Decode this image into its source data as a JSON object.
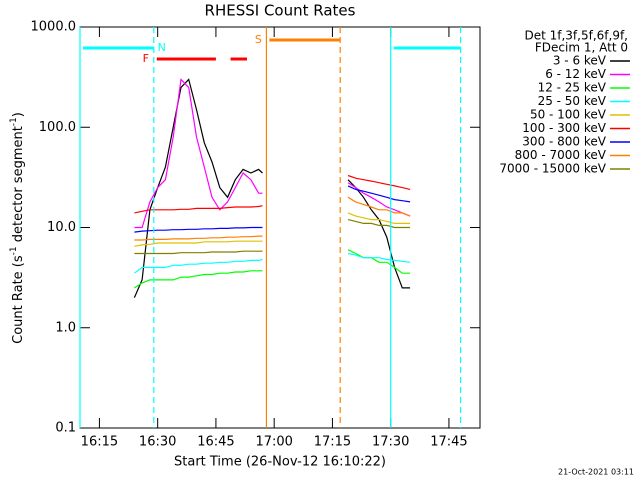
{
  "chart_data": {
    "type": "line",
    "title": "RHESSI Count Rates",
    "xlabel": "Start Time (26-Nov-12 16:10:22)",
    "ylabel": [
      "Count Rate (s",
      "-1",
      " detector segment",
      "-1",
      ")"
    ],
    "legend_header": [
      "Det 1f,3f,5f,6f,9f,",
      "FDecim 1, Att 0"
    ],
    "timestamp": "21-Oct-2021 03:11",
    "log_y": true,
    "legend": "right",
    "xlim": [
      "16:10",
      "17:53"
    ],
    "xticks": [
      "16:15",
      "16:30",
      "16:45",
      "17:00",
      "17:15",
      "17:30",
      "17:45"
    ],
    "ylim": [
      0.1,
      1000
    ],
    "yticks": [
      0.1,
      {
        "value": 1,
        "label": "1.0"
      },
      {
        "value": 10,
        "label": "10.0"
      },
      {
        "value": 100,
        "label": "100.0"
      },
      {
        "value": 1000,
        "label": "1000.0"
      }
    ],
    "x": [
      "16:24",
      "16:26",
      "16:28",
      "16:30",
      "16:32",
      "16:34",
      "16:36",
      "16:38",
      "16:40",
      "16:42",
      "16:44",
      "16:46",
      "16:48",
      "16:50",
      "16:52",
      "16:54",
      "16:56",
      "16:57",
      "17:08",
      "17:19",
      "17:21",
      "17:23",
      "17:25",
      "17:27",
      "17:29",
      "17:31",
      "17:33",
      "17:35"
    ],
    "series": [
      {
        "name": "3 - 6 keV",
        "color": "#000000",
        "values": [
          2,
          3,
          15,
          25,
          40,
          100,
          250,
          300,
          150,
          70,
          45,
          25,
          20,
          30,
          38,
          35,
          38,
          35,
          null,
          30,
          25,
          20,
          15,
          12,
          8,
          4,
          2.5,
          2.5
        ]
      },
      {
        "name": "6 - 12 keV",
        "color": "#ff00ff",
        "values": [
          10,
          10,
          18,
          25,
          30,
          80,
          300,
          250,
          80,
          40,
          20,
          15,
          18,
          25,
          35,
          30,
          22,
          22,
          null,
          28,
          25,
          22,
          20,
          18,
          16,
          15,
          14,
          13
        ]
      },
      {
        "name": "12 - 25 keV",
        "color": "#00ff00",
        "values": [
          2.5,
          2.8,
          3,
          3,
          3,
          3,
          3.2,
          3.2,
          3.3,
          3.4,
          3.4,
          3.5,
          3.5,
          3.6,
          3.6,
          3.7,
          3.7,
          3.7,
          null,
          6,
          5.5,
          5,
          5,
          4.5,
          4.5,
          4,
          3.5,
          3.5
        ]
      },
      {
        "name": "25 - 50 keV",
        "color": "#00ffff",
        "values": [
          3.5,
          4,
          4,
          4,
          4,
          4.2,
          4.2,
          4.3,
          4.3,
          4.4,
          4.4,
          4.5,
          4.5,
          4.6,
          4.6,
          4.7,
          4.7,
          4.8,
          null,
          5.5,
          5.3,
          5,
          5,
          5,
          4.8,
          4.7,
          4.6,
          4.5
        ]
      },
      {
        "name": "50 - 100 keV",
        "color": "#e0c000",
        "values": [
          6.5,
          6.7,
          6.8,
          7,
          7,
          7,
          7,
          7,
          7,
          7.2,
          7.2,
          7.2,
          7.2,
          7.3,
          7.3,
          7.3,
          7.3,
          7.3,
          null,
          14,
          13,
          12.5,
          12,
          12,
          11.5,
          11,
          11,
          11
        ]
      },
      {
        "name": "100 - 300 keV",
        "color": "#ff0000",
        "values": [
          14,
          14.5,
          15,
          15,
          15,
          15,
          15.2,
          15.2,
          15.5,
          15.5,
          15.5,
          15.5,
          15.8,
          16,
          16,
          16,
          16.2,
          16.5,
          null,
          33,
          31,
          30,
          29,
          28,
          27,
          26,
          25,
          24
        ]
      },
      {
        "name": "300 - 800 keV",
        "color": "#0000ff",
        "values": [
          9,
          9.2,
          9.3,
          9.4,
          9.4,
          9.5,
          9.5,
          9.6,
          9.6,
          9.7,
          9.7,
          9.8,
          9.8,
          9.9,
          9.9,
          10,
          10,
          10,
          null,
          26,
          24,
          23,
          22,
          21,
          20,
          19,
          18.5,
          18
        ]
      },
      {
        "name": "800 - 7000 keV",
        "color": "#ff8000",
        "values": [
          7.5,
          7.5,
          7.6,
          7.6,
          7.6,
          7.7,
          7.7,
          7.7,
          7.8,
          7.8,
          7.9,
          7.9,
          8,
          8,
          8.1,
          8.1,
          8.2,
          8.2,
          null,
          20,
          18,
          17,
          16,
          15,
          15,
          14,
          14,
          13
        ]
      },
      {
        "name": "7000 - 15000 keV",
        "color": "#808000",
        "values": [
          5.5,
          5.5,
          5.5,
          5.5,
          5.5,
          5.5,
          5.6,
          5.6,
          5.6,
          5.6,
          5.7,
          5.7,
          5.7,
          5.7,
          5.8,
          5.8,
          5.8,
          5.8,
          null,
          12,
          11.5,
          11,
          11,
          10.5,
          10.5,
          10,
          10,
          10
        ]
      }
    ],
    "flags": [
      {
        "label": "N",
        "color": "#00ffff",
        "vlines": true,
        "spans": [
          [
            "16:10",
            "16:29"
          ],
          [
            "17:30",
            "17:48"
          ]
        ]
      },
      {
        "label": "F",
        "color": "#ff0000",
        "vlines": false,
        "spans": [
          [
            "16:29",
            "16:45"
          ],
          [
            "16:48",
            "16:53"
          ]
        ]
      },
      {
        "label": "S",
        "color": "#ff8000",
        "vlines": true,
        "spans": [
          [
            "16:58",
            "17:17"
          ]
        ]
      }
    ]
  }
}
